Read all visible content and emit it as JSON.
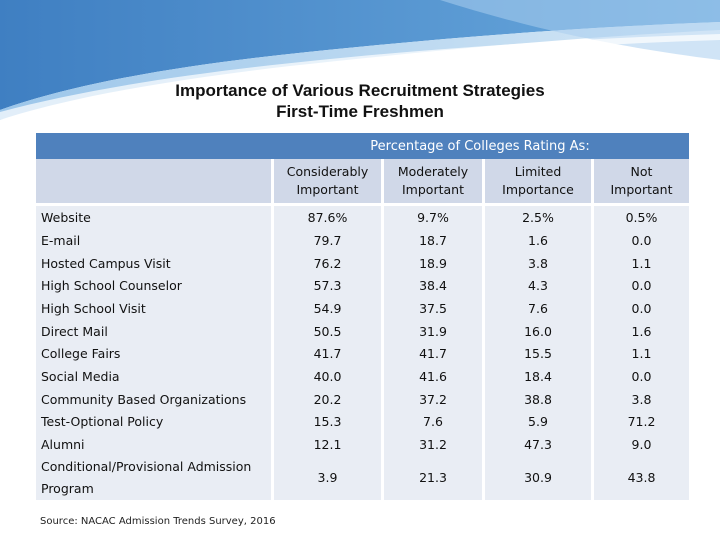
{
  "title": {
    "line1": "Importance of Various Recruitment Strategies",
    "line2": "First-Time Freshmen"
  },
  "table": {
    "group_header": "Percentage of Colleges Rating As:",
    "columns": [
      {
        "line1": "Considerably",
        "line2": "Important"
      },
      {
        "line1": "Moderately",
        "line2": "Important"
      },
      {
        "line1": "Limited",
        "line2": "Importance"
      },
      {
        "line1": "Not",
        "line2": "Important"
      }
    ],
    "rows": [
      {
        "label": "Website",
        "values": [
          "87.6%",
          "9.7%",
          "2.5%",
          "0.5%"
        ]
      },
      {
        "label": "E-mail",
        "values": [
          "79.7",
          "18.7",
          "1.6",
          "0.0"
        ]
      },
      {
        "label": "Hosted Campus Visit",
        "values": [
          "76.2",
          "18.9",
          "3.8",
          "1.1"
        ]
      },
      {
        "label": "High School Counselor",
        "values": [
          "57.3",
          "38.4",
          "4.3",
          "0.0"
        ]
      },
      {
        "label": "High School Visit",
        "values": [
          "54.9",
          "37.5",
          "7.6",
          "0.0"
        ]
      },
      {
        "label": "Direct Mail",
        "values": [
          "50.5",
          "31.9",
          "16.0",
          "1.6"
        ]
      },
      {
        "label": "College Fairs",
        "values": [
          "41.7",
          "41.7",
          "15.5",
          "1.1"
        ]
      },
      {
        "label": "Social Media",
        "values": [
          "40.0",
          "41.6",
          "18.4",
          "0.0"
        ]
      },
      {
        "label": "Community Based Organizations",
        "values": [
          "20.2",
          "37.2",
          "38.8",
          "3.8"
        ]
      },
      {
        "label": "Test-Optional Policy",
        "values": [
          "15.3",
          "7.6",
          "5.9",
          "71.2"
        ]
      },
      {
        "label": "Alumni",
        "values": [
          "12.1",
          "31.2",
          "47.3",
          "9.0"
        ]
      },
      {
        "label_line1": "Conditional/Provisional Admission",
        "label_line2": "Program",
        "values": [
          "3.9",
          "21.3",
          "30.9",
          "43.8"
        ]
      }
    ]
  },
  "source": "Source: NACAC Admission Trends Survey, 2016",
  "colors": {
    "header_blue": "#4f81bd",
    "band_light": "#e9edf4",
    "band_mid": "#d0d8e8",
    "banner_blue": "#5b9bd5"
  }
}
